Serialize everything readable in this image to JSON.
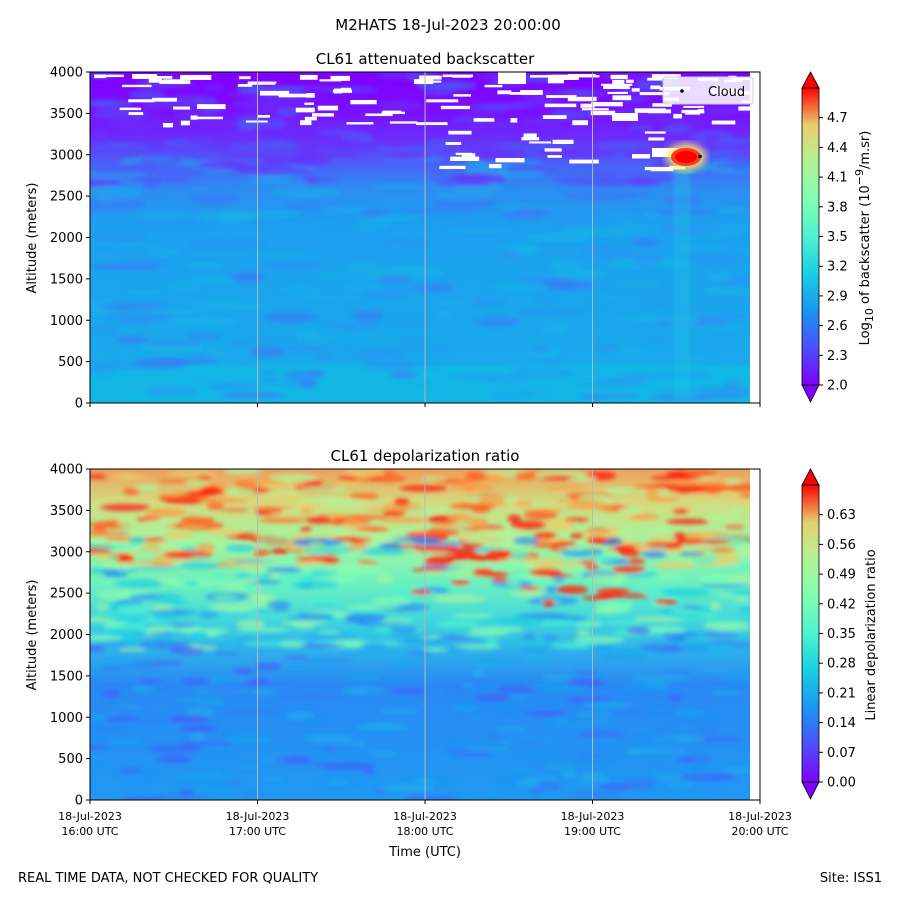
{
  "figure": {
    "suptitle": "M2HATS 18-Jul-2023 20:00:00",
    "footer_left": "REAL TIME DATA, NOT CHECKED FOR QUALITY",
    "footer_right": "Site: ISS1"
  },
  "chart_data": [
    {
      "type": "heatmap",
      "title": "CL61 attenuated backscatter",
      "ylabel": "Altitude (meters)",
      "xlabel": "",
      "ylim": [
        0,
        4000
      ],
      "yticks": [
        "0",
        "500",
        "1000",
        "1500",
        "2000",
        "2500",
        "3000",
        "3500",
        "4000"
      ],
      "xlim": [
        "18-Jul-2023 16:00 UTC",
        "18-Jul-2023 20:00 UTC"
      ],
      "grid": "vertical-lines-at-hours",
      "colorbar": {
        "label_prefix": "Log",
        "label_sub": "10",
        "label_mid": " of backscatter (10",
        "label_sup": "−9",
        "label_suffix": "/m.sr)",
        "min": 2.0,
        "max": 5.0,
        "ticks": [
          "2.0",
          "2.3",
          "2.6",
          "2.9",
          "3.2",
          "3.5",
          "3.8",
          "4.1",
          "4.4",
          "4.7"
        ],
        "colormap": "rainbow",
        "extend": "both"
      },
      "legend": {
        "position": "top-right",
        "entries": [
          "Cloud"
        ]
      },
      "cloud_points": [
        {
          "time": "19:36 UTC",
          "altitude": 2980
        }
      ],
      "features": [
        {
          "description": "boundary layer low backscatter band",
          "altitude_range": [
            0,
            450
          ],
          "value": 2.6
        },
        {
          "description": "aerosol layer",
          "altitude_range": [
            450,
            3000
          ],
          "value": 2.75
        },
        {
          "description": "upper low signal region",
          "altitude_range": [
            3000,
            4000
          ],
          "value": 2.1
        },
        {
          "description": "cloud core",
          "time": "19:35 UTC",
          "altitude": 2970,
          "value": 5.0
        }
      ]
    },
    {
      "type": "heatmap",
      "title": "CL61 depolarization ratio",
      "ylabel": "Altitude (meters)",
      "xlabel": "Time (UTC)",
      "ylim": [
        0,
        4000
      ],
      "yticks": [
        "0",
        "500",
        "1000",
        "1500",
        "2000",
        "2500",
        "3000",
        "3500",
        "4000"
      ],
      "xticks": [
        {
          "date": "18-Jul-2023",
          "time": "16:00 UTC"
        },
        {
          "date": "18-Jul-2023",
          "time": "17:00 UTC"
        },
        {
          "date": "18-Jul-2023",
          "time": "18:00 UTC"
        },
        {
          "date": "18-Jul-2023",
          "time": "19:00 UTC"
        },
        {
          "date": "18-Jul-2023",
          "time": "20:00 UTC"
        }
      ],
      "grid": "vertical-lines-at-hours",
      "colorbar": {
        "label": "Linear depolarization ratio",
        "min": 0.0,
        "max": 0.7,
        "ticks": [
          "0.00",
          "0.07",
          "0.14",
          "0.21",
          "0.28",
          "0.35",
          "0.42",
          "0.49",
          "0.56",
          "0.63"
        ],
        "colormap": "rainbow",
        "extend": "both"
      },
      "features": [
        {
          "description": "low depolarization near surface",
          "altitude_range": [
            0,
            1800
          ],
          "value": 0.12
        },
        {
          "description": "transition layer",
          "altitude_range": [
            1800,
            2800
          ],
          "value": 0.3
        },
        {
          "description": "high depolarization aloft",
          "altitude_range": [
            2800,
            4000
          ],
          "value": 0.5
        }
      ]
    }
  ]
}
